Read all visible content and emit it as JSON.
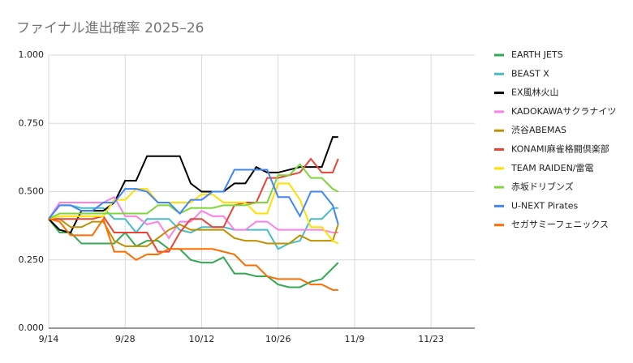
{
  "chart_data": {
    "type": "line",
    "title": "ファイナル進出確率 2025–26",
    "x": [
      "9/14",
      "9/16",
      "9/18",
      "9/20",
      "9/22",
      "9/24",
      "9/26",
      "9/28",
      "9/30",
      "10/2",
      "10/4",
      "10/6",
      "10/8",
      "10/10",
      "10/12",
      "10/14",
      "10/16",
      "10/18",
      "10/20",
      "10/22",
      "10/24",
      "10/26",
      "10/28",
      "10/30",
      "11/1",
      "11/3",
      "11/5",
      "11/6"
    ],
    "xlim": [
      "9/14",
      "12/1"
    ],
    "xticks": [
      "9/14",
      "9/28",
      "10/12",
      "10/26",
      "11/9",
      "11/23"
    ],
    "ylim": [
      0,
      1
    ],
    "yticks": [
      {
        "value": 0,
        "label": "0.000"
      },
      {
        "value": 0.25,
        "label": "0.250"
      },
      {
        "value": 0.5,
        "label": "0.500"
      },
      {
        "value": 0.75,
        "label": "0.750"
      },
      {
        "value": 1,
        "label": "1.000"
      }
    ],
    "grid": true,
    "legend": "right",
    "series": [
      {
        "name": "EARTH JETS",
        "color": "#34a853",
        "values": [
          0.4,
          0.35,
          0.35,
          0.31,
          0.31,
          0.31,
          0.31,
          0.35,
          0.3,
          0.32,
          0.32,
          0.29,
          0.29,
          0.25,
          0.24,
          0.24,
          0.26,
          0.2,
          0.2,
          0.19,
          0.19,
          0.16,
          0.15,
          0.15,
          0.17,
          0.18,
          0.22,
          0.24
        ]
      },
      {
        "name": "BEAST X",
        "color": "#46bdc6",
        "values": [
          0.4,
          0.45,
          0.45,
          0.44,
          0.44,
          0.44,
          0.4,
          0.4,
          0.35,
          0.4,
          0.4,
          0.4,
          0.36,
          0.35,
          0.37,
          0.37,
          0.37,
          0.36,
          0.36,
          0.36,
          0.36,
          0.29,
          0.31,
          0.32,
          0.4,
          0.4,
          0.44,
          0.44
        ]
      },
      {
        "name": "EX風林火山",
        "color": "#000000",
        "values": [
          0.4,
          0.36,
          0.35,
          0.43,
          0.43,
          0.43,
          0.46,
          0.54,
          0.54,
          0.63,
          0.63,
          0.63,
          0.63,
          0.53,
          0.5,
          0.5,
          0.5,
          0.53,
          0.53,
          0.59,
          0.57,
          0.57,
          0.58,
          0.59,
          0.59,
          0.59,
          0.7,
          0.7
        ]
      },
      {
        "name": "KADOKAWAサクラナイツ",
        "color": "#ff80e5",
        "values": [
          0.4,
          0.46,
          0.46,
          0.46,
          0.46,
          0.46,
          0.48,
          0.41,
          0.41,
          0.38,
          0.39,
          0.33,
          0.39,
          0.39,
          0.43,
          0.41,
          0.41,
          0.36,
          0.36,
          0.39,
          0.39,
          0.36,
          0.36,
          0.36,
          0.36,
          0.36,
          0.35,
          0.35
        ]
      },
      {
        "name": "渋谷ABEMAS",
        "color": "#bf9000",
        "values": [
          0.4,
          0.4,
          0.37,
          0.37,
          0.39,
          0.39,
          0.32,
          0.3,
          0.3,
          0.3,
          0.33,
          0.36,
          0.38,
          0.36,
          0.36,
          0.36,
          0.36,
          0.33,
          0.32,
          0.32,
          0.31,
          0.31,
          0.31,
          0.34,
          0.32,
          0.32,
          0.32,
          0.38
        ]
      },
      {
        "name": "KONAMI麻雀格闘倶楽部",
        "color": "#ea4335",
        "values": [
          0.4,
          0.4,
          0.4,
          0.4,
          0.4,
          0.41,
          0.35,
          0.35,
          0.35,
          0.35,
          0.28,
          0.28,
          0.35,
          0.4,
          0.4,
          0.37,
          0.37,
          0.45,
          0.46,
          0.46,
          0.55,
          0.55,
          0.56,
          0.57,
          0.62,
          0.57,
          0.57,
          0.62
        ]
      },
      {
        "name": "TEAM RAIDEN/雷電",
        "color": "#ffe000",
        "values": [
          0.4,
          0.41,
          0.41,
          0.41,
          0.41,
          0.41,
          0.47,
          0.47,
          0.51,
          0.51,
          0.46,
          0.46,
          0.46,
          0.46,
          0.49,
          0.49,
          0.46,
          0.46,
          0.46,
          0.42,
          0.42,
          0.53,
          0.53,
          0.47,
          0.37,
          0.37,
          0.32,
          0.31
        ]
      },
      {
        "name": "赤坂ドリブンズ",
        "color": "#7ed63a",
        "values": [
          0.4,
          0.42,
          0.42,
          0.42,
          0.42,
          0.42,
          0.42,
          0.42,
          0.42,
          0.42,
          0.45,
          0.45,
          0.42,
          0.44,
          0.44,
          0.44,
          0.45,
          0.45,
          0.45,
          0.46,
          0.46,
          0.56,
          0.56,
          0.6,
          0.55,
          0.55,
          0.51,
          0.5
        ]
      },
      {
        "name": "U-NEXT Pirates",
        "color": "#4285f4",
        "values": [
          0.4,
          0.45,
          0.45,
          0.43,
          0.43,
          0.46,
          0.46,
          0.51,
          0.51,
          0.5,
          0.46,
          0.46,
          0.42,
          0.47,
          0.47,
          0.5,
          0.5,
          0.58,
          0.58,
          0.58,
          0.58,
          0.48,
          0.48,
          0.41,
          0.5,
          0.5,
          0.45,
          0.38
        ]
      },
      {
        "name": "セガサミーフェニックス",
        "color": "#ff6d01",
        "values": [
          0.4,
          0.39,
          0.34,
          0.34,
          0.34,
          0.4,
          0.28,
          0.28,
          0.25,
          0.27,
          0.27,
          0.29,
          0.29,
          0.29,
          0.29,
          0.29,
          0.28,
          0.27,
          0.23,
          0.23,
          0.19,
          0.18,
          0.18,
          0.18,
          0.16,
          0.16,
          0.14,
          0.14
        ]
      }
    ]
  }
}
